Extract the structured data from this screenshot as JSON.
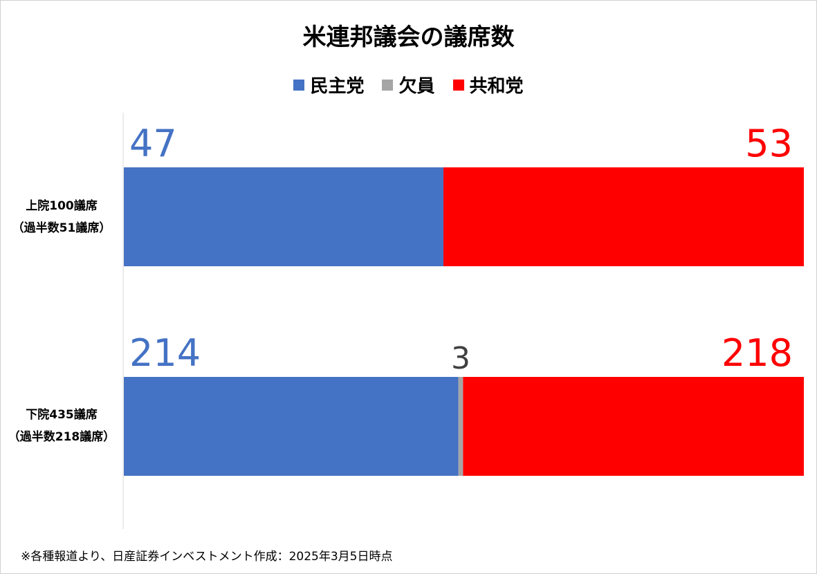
{
  "title": "米連邦議会の議席数",
  "footnote": "※各種報道より、日産証券インベストメント作成：2025年3月5日時点",
  "chart_data": {
    "type": "bar",
    "stacked": true,
    "orientation": "horizontal",
    "title": "米連邦議会の議席数",
    "legend_position": "top",
    "categories": [
      {
        "line1": "上院100議席",
        "line2": "（過半数51議席）"
      },
      {
        "line1": "下院435議席",
        "line2": "（過半数218議席）"
      }
    ],
    "series": [
      {
        "name": "民主党",
        "color": "#4472C4",
        "values": [
          47,
          214
        ]
      },
      {
        "name": "欠員",
        "color": "#A5A5A5",
        "label_color": "#404040",
        "values": [
          0,
          3
        ]
      },
      {
        "name": "共和党",
        "color": "#FF0000",
        "values": [
          53,
          218
        ]
      }
    ],
    "data_labels": [
      [
        "47",
        "",
        "53"
      ],
      [
        "214",
        "3",
        "218"
      ]
    ]
  }
}
